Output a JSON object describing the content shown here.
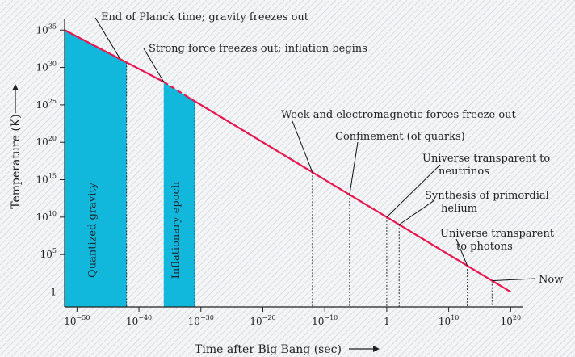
{
  "chart_data": {
    "type": "line",
    "xlabel": "Time after Big Bang (sec)",
    "ylabel": "Temperature (K)",
    "x_scale": "log",
    "y_scale": "log",
    "xlim": [
      1e-52,
      1e+21
    ],
    "ylim": [
      0.01,
      1e+36
    ],
    "x_ticks": [
      {
        "value": 1e-50,
        "base": "10",
        "exp": "−50"
      },
      {
        "value": 1e-40,
        "base": "10",
        "exp": "−40"
      },
      {
        "value": 1e-30,
        "base": "10",
        "exp": "−30"
      },
      {
        "value": 1e-20,
        "base": "10",
        "exp": "−20"
      },
      {
        "value": 1e-10,
        "base": "10",
        "exp": "−10"
      },
      {
        "value": 1,
        "base": "1",
        "exp": ""
      },
      {
        "value": 10000000000.0,
        "base": "10",
        "exp": "10"
      },
      {
        "value": 1e+20,
        "base": "10",
        "exp": "20"
      }
    ],
    "y_ticks": [
      {
        "value": 1,
        "base": "1",
        "exp": ""
      },
      {
        "value": 100000.0,
        "base": "10",
        "exp": "5"
      },
      {
        "value": 10000000000.0,
        "base": "10",
        "exp": "10"
      },
      {
        "value": 1000000000000000.0,
        "base": "10",
        "exp": "15"
      },
      {
        "value": 1e+20,
        "base": "10",
        "exp": "20"
      },
      {
        "value": 1e+25,
        "base": "10",
        "exp": "25"
      },
      {
        "value": 1e+30,
        "base": "10",
        "exp": "30"
      },
      {
        "value": 1e+35,
        "base": "10",
        "exp": "35"
      }
    ],
    "series": [
      {
        "color": "#e8174f",
        "segments": [
          {
            "style": "solid",
            "x": [
              1e-52,
              1e-36
            ],
            "y": [
              1e+35,
              1.2e+28
            ]
          },
          {
            "style": "dashed",
            "x": [
              1e-36,
              1e-32
            ],
            "y": [
              1.2e+28,
              1e+26
            ]
          },
          {
            "style": "solid",
            "x": [
              1e-32,
              1e+20
            ],
            "y": [
              1e+26,
              1
            ]
          }
        ]
      }
    ],
    "regions": [
      {
        "label": "Quantized gravity",
        "x0": 1e-52,
        "x1": 1e-42,
        "color": "#12b8dc"
      },
      {
        "label": "Inflationary epoch",
        "x0": 1e-36,
        "x1": 1e-31,
        "color": "#12b8dc"
      }
    ],
    "annotations": [
      {
        "lines": [
          "End of Planck time; gravity freezes out"
        ],
        "x": 1e-43,
        "y": 4e+31
      },
      {
        "lines": [
          "Strong force freezes out; inflation begins"
        ],
        "x": 1e-36,
        "y": 1.2e+28
      },
      {
        "lines": [
          "Week and electromagnetic forces freeze out"
        ],
        "x": 1e-12,
        "y": 1000000000000000.0
      },
      {
        "lines": [
          "Confinement (of quarks)"
        ],
        "x": 1e-06,
        "y": 3000000000000.0
      },
      {
        "lines": [
          "Universe transparent to",
          "neutrinos"
        ],
        "x": 1,
        "y": 30000000000.0
      },
      {
        "lines": [
          "Synthesis of primordial",
          "helium"
        ],
        "x": 100,
        "y": 1000000000.0
      },
      {
        "lines": [
          "Universe transparent",
          "to photons"
        ],
        "x": 10000000000000.0,
        "y": 3000
      },
      {
        "lines": [
          "Now"
        ],
        "x": 1e+17,
        "y": 3
      }
    ],
    "grid": false,
    "legend": "none"
  }
}
